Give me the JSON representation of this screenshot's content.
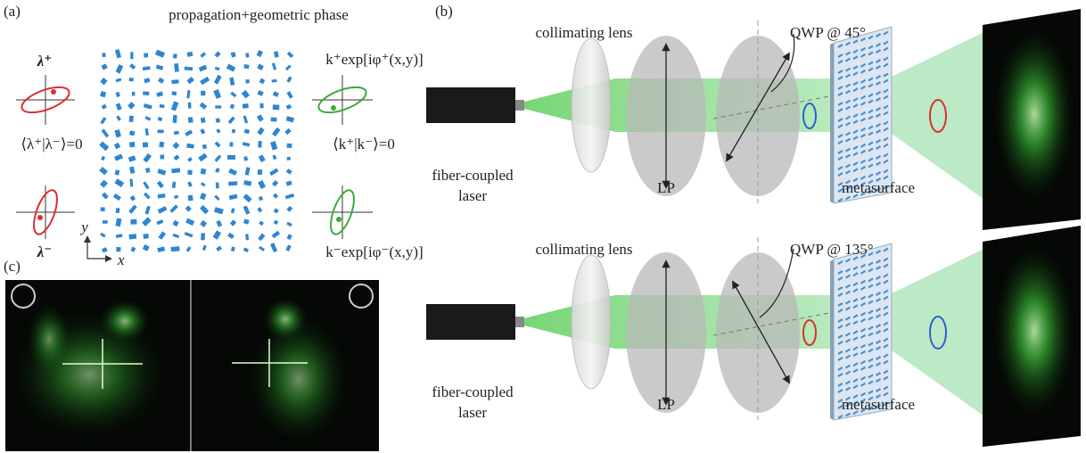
{
  "panels": {
    "a": {
      "label": "(a)",
      "title": "propagation+geometric phase",
      "lambda_plus": "λ⁺",
      "lambda_minus": "λ⁻",
      "k_plus": "k⁺exp[iφ⁺(x,y)]",
      "k_minus": "k⁻exp[iφ⁻(x,y)]",
      "lambda_orth": "⟨λ⁺|λ⁻⟩=0",
      "k_orth": "⟨k⁺|k⁻⟩=0",
      "axis_y": "y",
      "axis_x": "x"
    },
    "b": {
      "label": "(b)",
      "rows": [
        {
          "lens": "collimating lens",
          "qwp": "QWP @ 45°",
          "laser": [
            "fiber-coupled",
            "laser"
          ],
          "lp": "LP",
          "metasurface": "metasurface"
        },
        {
          "lens": "collimating lens",
          "qwp": "QWP @ 135°",
          "laser": [
            "fiber-coupled",
            "laser"
          ],
          "lp": "LP",
          "metasurface": "metasurface"
        }
      ]
    },
    "c": {
      "label": "(c)"
    }
  }
}
